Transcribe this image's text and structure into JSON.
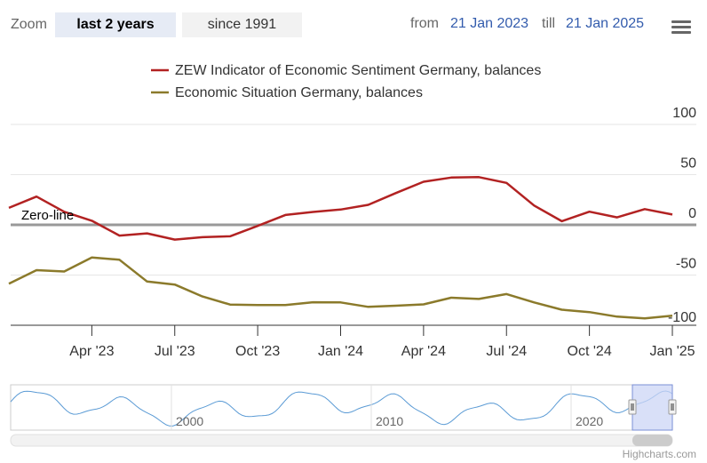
{
  "range_selector": {
    "zoom_label": "Zoom",
    "buttons": [
      {
        "label": "last 2 years",
        "active": true
      },
      {
        "label": "since 1991",
        "active": false
      }
    ],
    "from_label": "from",
    "from_value": "21 Jan 2023",
    "till_label": "till",
    "till_value": "21 Jan 2025"
  },
  "menu": {
    "icon": "hamburger-menu-icon"
  },
  "credit": "Highcharts.com",
  "colors": {
    "sentiment": "#b22222",
    "situation": "#8b7a2b",
    "zero_line": "#999999",
    "navigator_line": "#5b9bd5",
    "navigator_mask": "#ccd6f5"
  },
  "chart_data": {
    "type": "line",
    "title": "",
    "x_labels": [
      "Apr '23",
      "Jul '23",
      "Oct '23",
      "Jan '24",
      "Apr '24",
      "Jul '24",
      "Oct '24",
      "Jan '25"
    ],
    "x": [
      "Jan 2023",
      "Feb 2023",
      "Mar 2023",
      "Apr 2023",
      "May 2023",
      "Jun 2023",
      "Jul 2023",
      "Aug 2023",
      "Sep 2023",
      "Oct 2023",
      "Nov 2023",
      "Dec 2023",
      "Jan 2024",
      "Feb 2024",
      "Mar 2024",
      "Apr 2024",
      "May 2024",
      "Jun 2024",
      "Jul 2024",
      "Aug 2024",
      "Sep 2024",
      "Oct 2024",
      "Nov 2024",
      "Dec 2024",
      "Jan 2025"
    ],
    "series": [
      {
        "name": "ZEW Indicator of Economic Sentiment Germany, balances",
        "values": [
          16.9,
          28.1,
          13.0,
          4.1,
          -10.7,
          -8.5,
          -14.7,
          -12.3,
          -11.4,
          -1.1,
          9.8,
          12.8,
          15.2,
          19.9,
          31.7,
          42.9,
          47.1,
          47.5,
          41.8,
          19.2,
          3.6,
          13.1,
          7.4,
          15.7,
          10.3
        ]
      },
      {
        "name": "Economic Situation Germany, balances",
        "values": [
          -58.6,
          -45.1,
          -46.5,
          -32.5,
          -34.8,
          -56.5,
          -59.5,
          -71.3,
          -79.4,
          -79.9,
          -79.8,
          -77.1,
          -77.3,
          -81.7,
          -80.5,
          -79.2,
          -72.6,
          -73.8,
          -68.9,
          -77.3,
          -84.5,
          -86.9,
          -91.4,
          -93.1,
          -90.4
        ]
      }
    ],
    "ylim": [
      -100,
      100
    ],
    "y_ticks": [
      100,
      50,
      0,
      -50,
      -100
    ],
    "annotations": [
      "Zero-line"
    ],
    "navigator": {
      "labels": [
        "2000",
        "2010",
        "2020"
      ]
    }
  }
}
